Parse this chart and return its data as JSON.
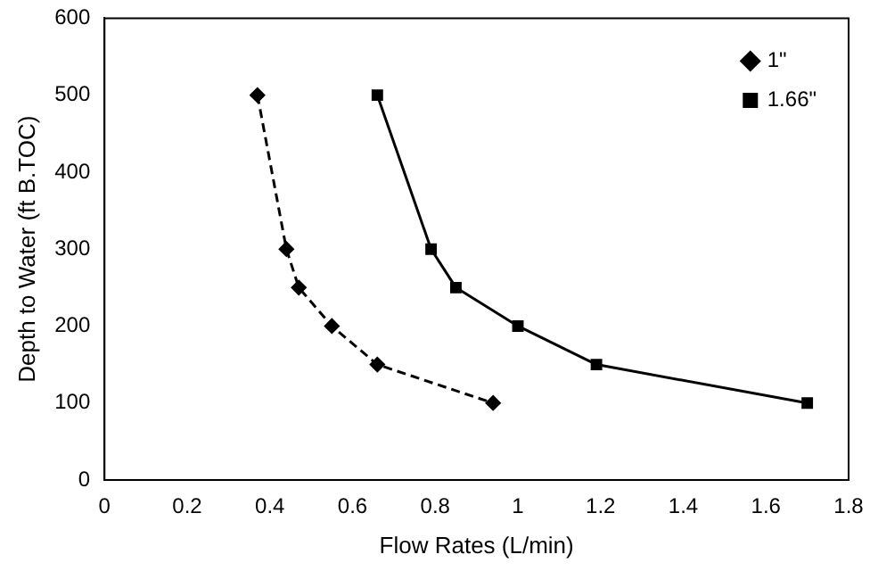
{
  "chart_data": {
    "type": "line",
    "xlabel": "Flow Rates (L/min)",
    "ylabel": "Depth to Water (ft B.TOC)",
    "xlim": [
      0,
      1.8
    ],
    "xticks": [
      0,
      0.2,
      0.4,
      0.6,
      0.8,
      1,
      1.2,
      1.4,
      1.6,
      1.8
    ],
    "ylim": [
      0,
      600
    ],
    "yticks": [
      0,
      100,
      200,
      300,
      400,
      500,
      600
    ],
    "grid": false,
    "legend": "top right",
    "series": [
      {
        "name": "1\"",
        "color": "#000000",
        "marker": "diamond",
        "line_style": "dashed",
        "x": [
          0.37,
          0.44,
          0.47,
          0.55,
          0.66,
          0.94
        ],
        "values": [
          500,
          300,
          250,
          200,
          150,
          100
        ]
      },
      {
        "name": "1.66\"",
        "color": "#000000",
        "marker": "square",
        "line_style": "solid",
        "x": [
          0.66,
          0.79,
          0.85,
          1.0,
          1.19,
          1.7
        ],
        "values": [
          500,
          300,
          250,
          200,
          150,
          100
        ]
      }
    ]
  }
}
